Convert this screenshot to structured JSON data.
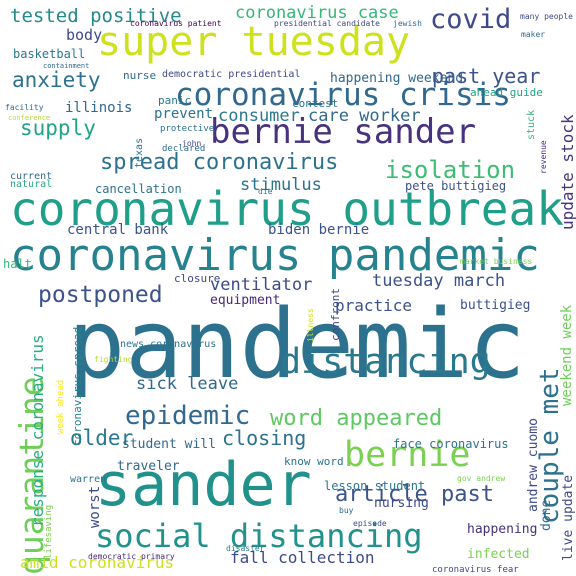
{
  "words": [
    {
      "text": "pandemic",
      "color": "#2c728e"
    },
    {
      "text": "sander",
      "color": "#21918c"
    },
    {
      "text": "coronavirus outbreak",
      "color": "#1f9e89"
    },
    {
      "text": "coronavirus pandemic",
      "color": "#26828e"
    },
    {
      "text": "super tuesday",
      "color": "#cde11d"
    },
    {
      "text": "bernie sander",
      "color": "#46327e"
    },
    {
      "text": "social distancing",
      "color": "#21918c"
    },
    {
      "text": "distancing",
      "color": "#2a788e"
    },
    {
      "text": "coronavirus crisis",
      "color": "#31688e"
    },
    {
      "text": "bernie",
      "color": "#7ad151"
    },
    {
      "text": "quarantine",
      "color": "#6ece58"
    },
    {
      "text": "epidemic",
      "color": "#31688e"
    },
    {
      "text": "covid",
      "color": "#3e4989"
    },
    {
      "text": "couple met",
      "color": "#2c728e"
    },
    {
      "text": "word appeared",
      "color": "#5ec962"
    },
    {
      "text": "article past",
      "color": "#3b528b"
    },
    {
      "text": "spread coronavirus",
      "color": "#2c728e"
    },
    {
      "text": "isolation",
      "color": "#3fbc73"
    },
    {
      "text": "postponed",
      "color": "#3b528b"
    },
    {
      "text": "anxiety",
      "color": "#2c728e"
    },
    {
      "text": "supply",
      "color": "#20a486"
    },
    {
      "text": "tested positive",
      "color": "#23898e"
    },
    {
      "text": "past year",
      "color": "#3b528b"
    },
    {
      "text": "closing",
      "color": "#2c728e"
    },
    {
      "text": "older",
      "color": "#2a788e"
    },
    {
      "text": "response coronavirus",
      "color": "#28ae80"
    },
    {
      "text": "amid coronavirus",
      "color": "#cde11d"
    },
    {
      "text": "fall collection",
      "color": "#3e4989"
    },
    {
      "text": "coronavirus case",
      "color": "#35b779"
    },
    {
      "text": "consumer",
      "color": "#2a788e"
    },
    {
      "text": "stimulus",
      "color": "#2c728e"
    },
    {
      "text": "tuesday march",
      "color": "#3b528b"
    },
    {
      "text": "sick leave",
      "color": "#31688e"
    },
    {
      "text": "care worker",
      "color": "#31688e"
    },
    {
      "text": "ventilator",
      "color": "#3e4989"
    },
    {
      "text": "update stock",
      "color": "#46327e"
    },
    {
      "text": "weekend week",
      "color": "#6ece58"
    },
    {
      "text": "worst",
      "color": "#3e4989"
    },
    {
      "text": "practice",
      "color": "#3b528b"
    },
    {
      "text": "central bank",
      "color": "#3b528b"
    },
    {
      "text": "biden bernie",
      "color": "#3b528b"
    },
    {
      "text": "body",
      "color": "#3e4989"
    },
    {
      "text": "happening weekend",
      "color": "#31688e"
    },
    {
      "text": "illinois",
      "color": "#31688e"
    },
    {
      "text": "prevent",
      "color": "#2c728e"
    },
    {
      "text": "cancellation",
      "color": "#2c728e"
    },
    {
      "text": "pete buttigieg",
      "color": "#3b528b"
    },
    {
      "text": "equipment",
      "color": "#482878"
    },
    {
      "text": "buttigieg",
      "color": "#3b528b"
    },
    {
      "text": "andrew cuomo",
      "color": "#3e4989"
    },
    {
      "text": "student will",
      "color": "#31688e"
    },
    {
      "text": "traveler",
      "color": "#31688e"
    },
    {
      "text": "lesson student",
      "color": "#2a788e"
    },
    {
      "text": "face coronavirus",
      "color": "#2c728e"
    },
    {
      "text": "nursing",
      "color": "#3e4989"
    },
    {
      "text": "happening",
      "color": "#46327e"
    },
    {
      "text": "infected",
      "color": "#7ad151"
    },
    {
      "text": "live update",
      "color": "#3e4989"
    },
    {
      "text": "done",
      "color": "#2c728e"
    },
    {
      "text": "know word",
      "color": "#2c728e"
    },
    {
      "text": "coronavirus spread",
      "color": "#26828e"
    },
    {
      "text": "news coronavirus",
      "color": "#2c728e"
    },
    {
      "text": "basketball",
      "color": "#2a788e"
    },
    {
      "text": "nurse",
      "color": "#31688e"
    },
    {
      "text": "democratic presidential",
      "color": "#3e4989"
    },
    {
      "text": "ahead guide",
      "color": "#20a486"
    },
    {
      "text": "contest",
      "color": "#2c728e"
    },
    {
      "text": "confront",
      "color": "#3e4989"
    },
    {
      "text": "halt",
      "color": "#35b779"
    },
    {
      "text": "closure",
      "color": "#3e4989"
    },
    {
      "text": "warren",
      "color": "#2c728e"
    },
    {
      "text": "lifesaving",
      "color": "#7ad151"
    },
    {
      "text": "week ahead",
      "color": "#fde725"
    },
    {
      "text": "panic",
      "color": "#2a788e"
    },
    {
      "text": "texas",
      "color": "#2c728e"
    },
    {
      "text": "protective",
      "color": "#2c728e"
    },
    {
      "text": "stuck",
      "color": "#35b779"
    },
    {
      "text": "natural",
      "color": "#22a884"
    },
    {
      "text": "current",
      "color": "#31688e"
    },
    {
      "text": "declared",
      "color": "#31688e"
    },
    {
      "text": "john",
      "color": "#3e4989"
    },
    {
      "text": "die",
      "color": "#2c728e"
    },
    {
      "text": "market business",
      "color": "#7ad151"
    },
    {
      "text": "revenue",
      "color": "#482878"
    },
    {
      "text": "maker",
      "color": "#31688e"
    },
    {
      "text": "many people",
      "color": "#3e4989"
    },
    {
      "text": "coronavirus patient",
      "color": "#440154"
    },
    {
      "text": "presidential candidate",
      "color": "#3e4989"
    },
    {
      "text": "jewish",
      "color": "#31688e"
    },
    {
      "text": "containment",
      "color": "#31688e"
    },
    {
      "text": "facility",
      "color": "#31688e"
    },
    {
      "text": "conference",
      "color": "#b5de2b"
    },
    {
      "text": "illness",
      "color": "#cde11d"
    },
    {
      "text": "buy",
      "color": "#31688e"
    },
    {
      "text": "episode",
      "color": "#3e4989"
    },
    {
      "text": "gov andrew",
      "color": "#7ad151"
    },
    {
      "text": "fighting",
      "color": "#b5de2b"
    },
    {
      "text": "disaster",
      "color": "#2a788e"
    },
    {
      "text": "democratic primary",
      "color": "#482878"
    },
    {
      "text": "coronavirus fear",
      "color": "#3e4989"
    }
  ]
}
